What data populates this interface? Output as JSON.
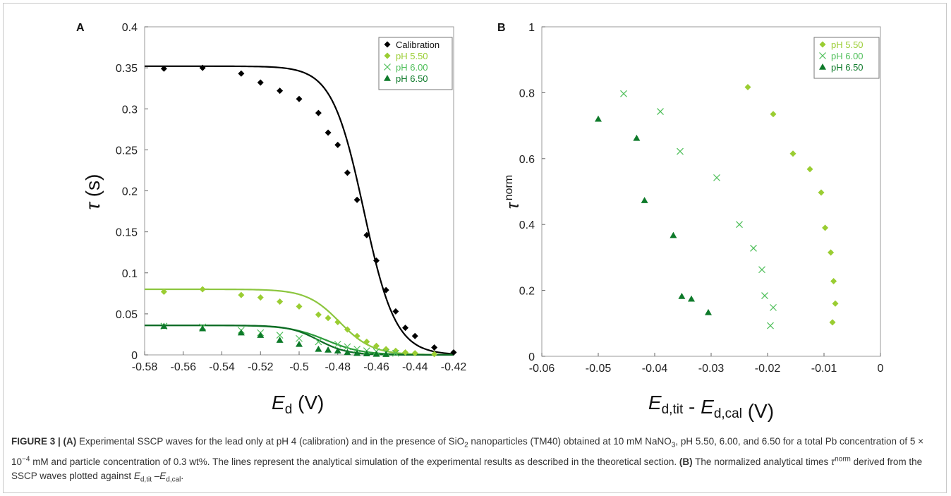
{
  "colors": {
    "calibration": "#000000",
    "ph550": "#9acd32",
    "ph600": "#4fbf5a",
    "ph650": "#0e7a2a",
    "line550": "#8cc63f",
    "line600": "#2c9a3c",
    "line650": "#0d6b25"
  },
  "chart_data": [
    {
      "panel_label": "A",
      "type": "scatter",
      "xlabel_main": "E",
      "xlabel_sub": "d",
      "xlabel_unit": " (V)",
      "ylabel_main": "τ",
      "ylabel_unit": " (s)",
      "xlim": [
        -0.58,
        -0.42
      ],
      "ylim": [
        0,
        0.4
      ],
      "xticks": [
        -0.58,
        -0.56,
        -0.54,
        -0.52,
        -0.5,
        -0.48,
        -0.46,
        -0.44,
        -0.42
      ],
      "xtick_labels": [
        "-0.58",
        "-0.56",
        "-0.54",
        "-0.52",
        "-0.5",
        "-0.48",
        "-0.46",
        "-0.44",
        "-0.42"
      ],
      "yticks": [
        0,
        0.05,
        0.1,
        0.15,
        0.2,
        0.25,
        0.3,
        0.35,
        0.4
      ],
      "ytick_labels": [
        "0",
        "0.05",
        "0.1",
        "0.15",
        "0.2",
        "0.25",
        "0.3",
        "0.35",
        "0.4"
      ],
      "grid": false,
      "legend_position": "top-right",
      "series": [
        {
          "name": "Calibration",
          "marker": "diamond",
          "color_key": "calibration",
          "points": [
            [
              -0.57,
              0.349
            ],
            [
              -0.55,
              0.35
            ],
            [
              -0.53,
              0.343
            ],
            [
              -0.52,
              0.332
            ],
            [
              -0.51,
              0.322
            ],
            [
              -0.5,
              0.312
            ],
            [
              -0.49,
              0.295
            ],
            [
              -0.485,
              0.271
            ],
            [
              -0.48,
              0.256
            ],
            [
              -0.475,
              0.222
            ],
            [
              -0.47,
              0.189
            ],
            [
              -0.465,
              0.146
            ],
            [
              -0.46,
              0.115
            ],
            [
              -0.455,
              0.079
            ],
            [
              -0.45,
              0.053
            ],
            [
              -0.445,
              0.033
            ],
            [
              -0.44,
              0.023
            ],
            [
              -0.43,
              0.009
            ],
            [
              -0.42,
              0.003
            ]
          ]
        },
        {
          "name": "pH 5.50",
          "marker": "diamond",
          "color_key": "ph550",
          "points": [
            [
              -0.57,
              0.077
            ],
            [
              -0.55,
              0.08
            ],
            [
              -0.53,
              0.073
            ],
            [
              -0.52,
              0.07
            ],
            [
              -0.51,
              0.065
            ],
            [
              -0.5,
              0.059
            ],
            [
              -0.49,
              0.049
            ],
            [
              -0.485,
              0.045
            ],
            [
              -0.48,
              0.04
            ],
            [
              -0.475,
              0.031
            ],
            [
              -0.47,
              0.023
            ],
            [
              -0.465,
              0.016
            ],
            [
              -0.46,
              0.011
            ],
            [
              -0.455,
              0.007
            ],
            [
              -0.45,
              0.005
            ],
            [
              -0.445,
              0.003
            ],
            [
              -0.44,
              0.002
            ],
            [
              -0.43,
              0.001
            ]
          ]
        },
        {
          "name": "pH 6.00",
          "marker": "x",
          "color_key": "ph600",
          "points": [
            [
              -0.57,
              0.035
            ],
            [
              -0.55,
              0.034
            ],
            [
              -0.53,
              0.03
            ],
            [
              -0.52,
              0.027
            ],
            [
              -0.51,
              0.024
            ],
            [
              -0.5,
              0.02
            ],
            [
              -0.49,
              0.016
            ],
            [
              -0.48,
              0.013
            ],
            [
              -0.475,
              0.01
            ],
            [
              -0.47,
              0.007
            ],
            [
              -0.465,
              0.005
            ],
            [
              -0.46,
              0.004
            ],
            [
              -0.455,
              0.003
            ],
            [
              -0.45,
              0.002
            ]
          ]
        },
        {
          "name": "pH 6.50",
          "marker": "triangle",
          "color_key": "ph650",
          "points": [
            [
              -0.57,
              0.035
            ],
            [
              -0.55,
              0.032
            ],
            [
              -0.53,
              0.027
            ],
            [
              -0.52,
              0.024
            ],
            [
              -0.51,
              0.018
            ],
            [
              -0.5,
              0.013
            ],
            [
              -0.49,
              0.007
            ],
            [
              -0.485,
              0.006
            ],
            [
              -0.48,
              0.005
            ],
            [
              -0.475,
              0.003
            ],
            [
              -0.47,
              0.002
            ],
            [
              -0.465,
              0.0015
            ],
            [
              -0.46,
              0.001
            ],
            [
              -0.455,
              0.0008
            ]
          ]
        }
      ],
      "fit_lines": [
        {
          "color_key": "calibration",
          "top": 0.352,
          "e_half": -0.4665,
          "slope": 0.0082
        },
        {
          "color_key": "line550",
          "top": 0.08,
          "e_half": -0.479,
          "slope": 0.0085
        },
        {
          "color_key": "line600",
          "top": 0.036,
          "e_half": -0.486,
          "slope": 0.0095
        },
        {
          "color_key": "line650",
          "top": 0.036,
          "e_half": -0.49,
          "slope": 0.0075
        }
      ]
    },
    {
      "panel_label": "B",
      "type": "scatter",
      "xlabel_parts": [
        {
          "t": "E",
          "sub": "d,tit"
        },
        {
          "t": " - "
        },
        {
          "t": "E",
          "sub": "d,cal"
        },
        {
          "t": " (V)"
        }
      ],
      "ylabel_main": "τ",
      "ylabel_sup": "norm",
      "xlim": [
        -0.06,
        0
      ],
      "ylim": [
        0,
        1
      ],
      "xticks": [
        -0.06,
        -0.05,
        -0.04,
        -0.03,
        -0.02,
        -0.01,
        0
      ],
      "xtick_labels": [
        "-0.06",
        "-0.05",
        "-0.04",
        "-0.03",
        "-0.02",
        "-0.01",
        "0"
      ],
      "yticks": [
        0,
        0.2,
        0.4,
        0.6,
        0.8,
        1
      ],
      "ytick_labels": [
        "0",
        "0.2",
        "0.4",
        "0.6",
        "0.8",
        "1"
      ],
      "grid": false,
      "legend_position": "top-right",
      "series": [
        {
          "name": "pH 5.50",
          "marker": "diamond",
          "color_key": "ph550",
          "points": [
            [
              -0.0235,
              0.817
            ],
            [
              -0.019,
              0.735
            ],
            [
              -0.0155,
              0.615
            ],
            [
              -0.0125,
              0.568
            ],
            [
              -0.0105,
              0.497
            ],
            [
              -0.0098,
              0.39
            ],
            [
              -0.0088,
              0.315
            ],
            [
              -0.0083,
              0.228
            ],
            [
              -0.008,
              0.16
            ],
            [
              -0.0085,
              0.103
            ]
          ]
        },
        {
          "name": "pH 6.00",
          "marker": "x",
          "color_key": "ph600",
          "points": [
            [
              -0.0455,
              0.797
            ],
            [
              -0.039,
              0.743
            ],
            [
              -0.0355,
              0.622
            ],
            [
              -0.029,
              0.542
            ],
            [
              -0.025,
              0.4
            ],
            [
              -0.0225,
              0.328
            ],
            [
              -0.021,
              0.263
            ],
            [
              -0.0205,
              0.184
            ],
            [
              -0.019,
              0.148
            ],
            [
              -0.0195,
              0.093
            ]
          ]
        },
        {
          "name": "pH 6.50",
          "marker": "triangle",
          "color_key": "ph650",
          "points": [
            [
              -0.05,
              0.72
            ],
            [
              -0.0432,
              0.662
            ],
            [
              -0.0418,
              0.473
            ],
            [
              -0.0367,
              0.367
            ],
            [
              -0.0352,
              0.182
            ],
            [
              -0.0335,
              0.174
            ],
            [
              -0.0305,
              0.133
            ]
          ]
        }
      ]
    }
  ],
  "caption": {
    "figure_label": "FIGURE 3 | ",
    "parts": [
      {
        "b": "(A)"
      },
      {
        "t": " Experimental SSCP waves for the lead only at pH 4 (calibration) and in the presence of SiO"
      },
      {
        "sub": "2"
      },
      {
        "t": " nanoparticles (TM40) obtained at 10 mM NaNO"
      },
      {
        "sub": "3"
      },
      {
        "t": ", pH 5.50, 6.00, and 6.50 for a total Pb concentration of 5 × 10"
      },
      {
        "sup": "−4"
      },
      {
        "t": " mM and particle concentration of 0.3 wt%. The lines represent the analytical simulation of the experimental results as described in the theoretical section. "
      },
      {
        "b": "(B)"
      },
      {
        "t": " The normalized analytical times "
      },
      {
        "i": "τ"
      },
      {
        "sup": "norm"
      },
      {
        "t": " derived from the SSCP waves plotted against "
      },
      {
        "i": "E"
      },
      {
        "sub": "d,tit"
      },
      {
        "t": " –"
      },
      {
        "i": "E"
      },
      {
        "sub": "d,cal"
      },
      {
        "t": "."
      }
    ]
  }
}
